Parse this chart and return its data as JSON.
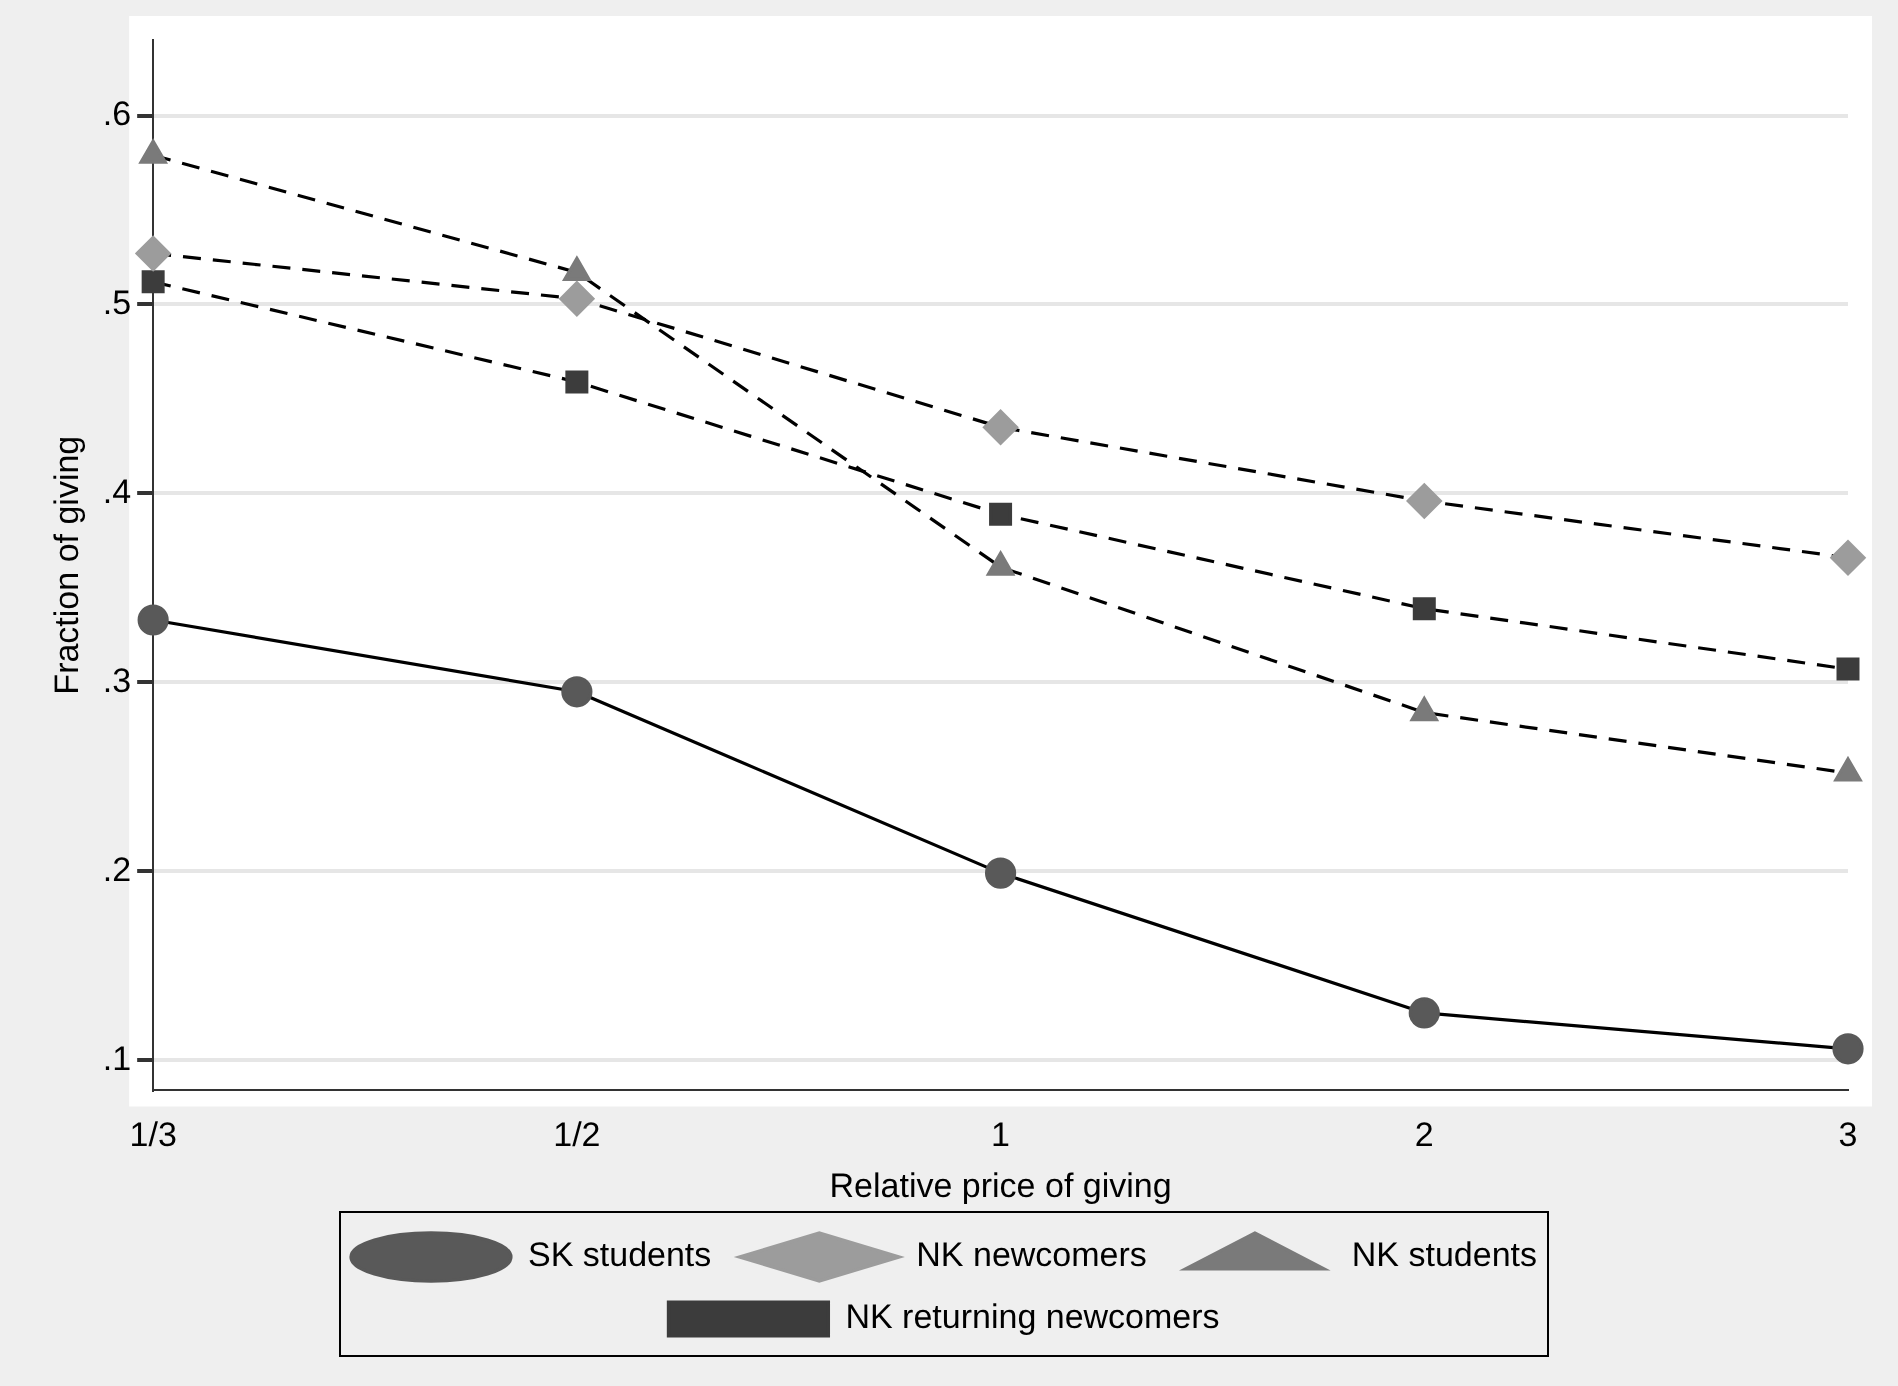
{
  "chart_data": {
    "type": "line",
    "xlabel": "Relative price of giving",
    "ylabel": "Fraction of giving",
    "categories": [
      "1/3",
      "1/2",
      "1",
      "2",
      "3"
    ],
    "series": [
      {
        "name": "SK students",
        "color": "#595959",
        "marker": "circle",
        "line_style": "solid",
        "values": [
          0.333,
          0.295,
          0.199,
          0.125,
          0.106
        ]
      },
      {
        "name": "NK newcomers",
        "color": "#9c9c9c",
        "marker": "diamond",
        "line_style": "dashed",
        "values": [
          0.527,
          0.503,
          0.435,
          0.396,
          0.366
        ]
      },
      {
        "name": "NK students",
        "color": "#7a7a7a",
        "marker": "triangle",
        "line_style": "dashed",
        "values": [
          0.579,
          0.517,
          0.361,
          0.284,
          0.252
        ]
      },
      {
        "name": "NK returning newcomers",
        "color": "#3c3c3c",
        "marker": "square",
        "line_style": "dashed",
        "values": [
          0.512,
          0.459,
          0.389,
          0.339,
          0.307
        ]
      }
    ],
    "ylim": [
      0.084,
      0.64
    ],
    "yticks": [
      {
        "value": 0.1,
        "label": ".1"
      },
      {
        "value": 0.2,
        "label": ".2"
      },
      {
        "value": 0.3,
        "label": ".3"
      },
      {
        "value": 0.4,
        "label": ".4"
      },
      {
        "value": 0.5,
        "label": ".5"
      },
      {
        "value": 0.6,
        "label": ".6"
      }
    ],
    "grid": "y",
    "legend": "bottom"
  }
}
